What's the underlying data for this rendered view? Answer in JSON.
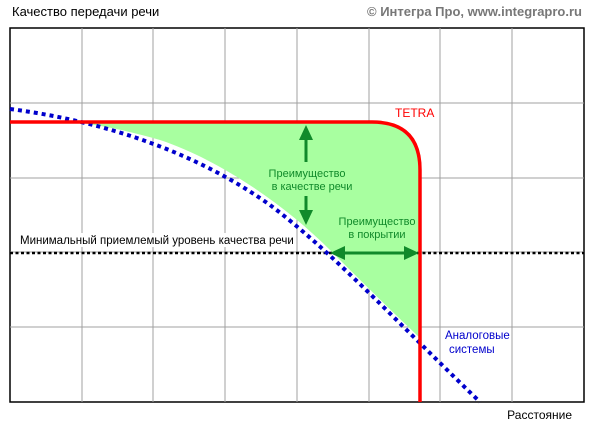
{
  "header": {
    "y_axis_title": "Качество передачи речи",
    "copyright": "© Интегра Про,  www.integrapro.ru"
  },
  "footer": {
    "x_axis_title": "Расстояние"
  },
  "annotations": {
    "tetra": "TETRA",
    "min_level": "Минимальный приемлемый уровень качества  речи",
    "quality_adv_line1": "Преимущество",
    "quality_adv_line2": "в качестве речи",
    "coverage_adv_line1": "Преимущество",
    "coverage_adv_line2": "в покрытии",
    "analog_line1": "Аналоговые",
    "analog_line2": "системы"
  },
  "colors": {
    "tetra": "#ff0000",
    "analog": "#0000cc",
    "advantage_fill": "#a8ffa0",
    "arrow": "#108a2a",
    "grid": "#a0a0a0"
  }
}
